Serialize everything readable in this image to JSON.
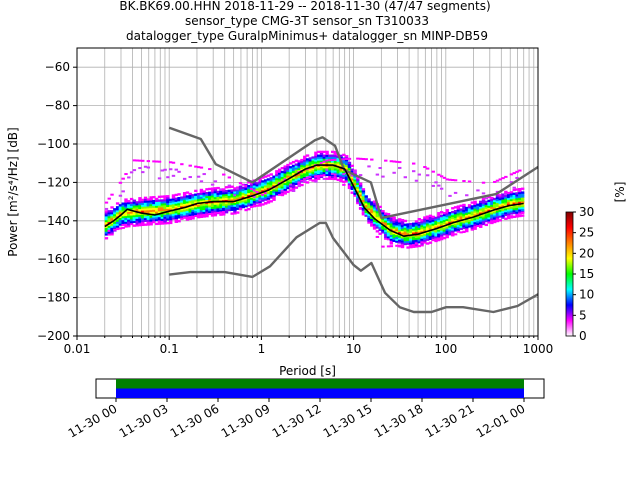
{
  "title": {
    "line1": "BK.BK69.00.HHN   2018-11-29 -- 2018-11-30  (47/47 segments)",
    "line2": "sensor_type CMG-3T sensor_sn T310033",
    "line3": "datalogger_type GuralpMinimus+ datalogger_sn MINP-DB59"
  },
  "chart_data": [
    {
      "type": "heatmap",
      "xlabel": "Period [s]",
      "ylabel": "Power [m²/s⁴/Hz] [dB]",
      "xscale": "log",
      "xlim": [
        0.01,
        1000
      ],
      "ylim": [
        -200,
        -50
      ],
      "xticks": [
        {
          "value": 0.01,
          "label": "0.01"
        },
        {
          "value": 0.1,
          "label": "0.1"
        },
        {
          "value": 1,
          "label": "1"
        },
        {
          "value": 10,
          "label": "10"
        },
        {
          "value": 100,
          "label": "100"
        },
        {
          "value": 1000,
          "label": "1000"
        }
      ],
      "yticks": [
        -60,
        -80,
        -100,
        -120,
        -140,
        -160,
        -180,
        -200
      ],
      "grid": true,
      "colorbar": {
        "label": "[%]",
        "ticks": [
          0,
          5,
          10,
          15,
          20,
          25,
          30
        ],
        "range": [
          0,
          30
        ],
        "colors": [
          "#ffffff",
          "#ff00ff",
          "#0000ff",
          "#00ffff",
          "#00ff00",
          "#ffff00",
          "#ff8000",
          "#ff0000",
          "#800000"
        ]
      },
      "series": [
        {
          "kind": "noise-model-high",
          "color": "#666666",
          "points": [
            [
              0.1,
              -91.5
            ],
            [
              0.22,
              -97.4
            ],
            [
              0.32,
              -110.5
            ],
            [
              0.8,
              -120
            ],
            [
              3.8,
              -98
            ],
            [
              4.6,
              -96.5
            ],
            [
              6.3,
              -101
            ],
            [
              7.9,
              -113.5
            ],
            [
              15.4,
              -120
            ],
            [
              20,
              -138.5
            ],
            [
              354.8,
              -126
            ],
            [
              1000,
              -112
            ]
          ]
        },
        {
          "kind": "noise-model-low",
          "color": "#666666",
          "points": [
            [
              0.1,
              -168
            ],
            [
              0.17,
              -166.7
            ],
            [
              0.4,
              -166.7
            ],
            [
              0.8,
              -169.2
            ],
            [
              1.24,
              -163.7
            ],
            [
              2.4,
              -148.6
            ],
            [
              4.3,
              -141.1
            ],
            [
              5.0,
              -141.1
            ],
            [
              6.0,
              -149
            ],
            [
              10,
              -163
            ],
            [
              12,
              -166
            ],
            [
              15.6,
              -162
            ],
            [
              21.9,
              -177.5
            ],
            [
              31.6,
              -185
            ],
            [
              45,
              -187.5
            ],
            [
              70,
              -187.5
            ],
            [
              101,
              -185
            ],
            [
              154,
              -185
            ],
            [
              328,
              -187.5
            ],
            [
              600,
              -184.4
            ],
            [
              1000,
              -178.3
            ]
          ]
        },
        {
          "kind": "mode",
          "color": "#000000",
          "points": [
            [
              0.02,
              -143
            ],
            [
              0.025,
              -140
            ],
            [
              0.03,
              -137
            ],
            [
              0.035,
              -134
            ],
            [
              0.05,
              -136
            ],
            [
              0.07,
              -137
            ],
            [
              0.1,
              -135
            ],
            [
              0.15,
              -133
            ],
            [
              0.2,
              -131
            ],
            [
              0.3,
              -130
            ],
            [
              0.5,
              -130
            ],
            [
              0.8,
              -127
            ],
            [
              1.2,
              -124
            ],
            [
              2,
              -118
            ],
            [
              3,
              -113
            ],
            [
              4,
              -111
            ],
            [
              6,
              -111
            ],
            [
              8,
              -113
            ],
            [
              10,
              -122
            ],
            [
              13,
              -133
            ],
            [
              17,
              -139
            ],
            [
              25,
              -145
            ],
            [
              35,
              -148
            ],
            [
              50,
              -147
            ],
            [
              80,
              -144
            ],
            [
              120,
              -141
            ],
            [
              200,
              -138
            ],
            [
              350,
              -134
            ],
            [
              500,
              -132
            ],
            [
              700,
              -131
            ]
          ]
        }
      ],
      "density_band": {
        "center": [
          [
            0.02,
            -142
          ],
          [
            0.03,
            -136
          ],
          [
            0.05,
            -135
          ],
          [
            0.1,
            -134
          ],
          [
            0.2,
            -131
          ],
          [
            0.3,
            -130
          ],
          [
            0.5,
            -129
          ],
          [
            0.8,
            -126
          ],
          [
            1.2,
            -123
          ],
          [
            2,
            -117
          ],
          [
            3,
            -113
          ],
          [
            4,
            -111
          ],
          [
            6,
            -111
          ],
          [
            8,
            -113
          ],
          [
            10,
            -121
          ],
          [
            13,
            -132
          ],
          [
            17,
            -138
          ],
          [
            25,
            -145
          ],
          [
            35,
            -147
          ],
          [
            50,
            -146
          ],
          [
            80,
            -143
          ],
          [
            120,
            -140
          ],
          [
            200,
            -137
          ],
          [
            350,
            -133
          ],
          [
            500,
            -131
          ],
          [
            700,
            -130
          ]
        ],
        "sparse_upper": [
          [
            0.02,
            -130
          ],
          [
            0.03,
            -118
          ],
          [
            0.04,
            -108
          ],
          [
            0.1,
            -109
          ],
          [
            0.3,
            -113
          ],
          [
            1,
            -126
          ],
          [
            2,
            -116
          ],
          [
            5,
            -108
          ],
          [
            10,
            -107
          ],
          [
            20,
            -108
          ],
          [
            50,
            -110
          ],
          [
            100,
            -118
          ],
          [
            300,
            -120
          ],
          [
            700,
            -112
          ]
        ],
        "sparse_lower": [
          [
            0.02,
            -145
          ],
          [
            0.05,
            -141
          ],
          [
            0.1,
            -139
          ],
          [
            0.5,
            -134
          ],
          [
            1,
            -131
          ],
          [
            3,
            -117
          ],
          [
            6,
            -115
          ],
          [
            10,
            -128
          ],
          [
            20,
            -153
          ],
          [
            40,
            -152
          ],
          [
            100,
            -148
          ],
          [
            300,
            -140
          ],
          [
            700,
            -135
          ]
        ]
      }
    },
    {
      "type": "timeline",
      "xticks": [
        "11-30 00",
        "11-30 03",
        "11-30 06",
        "11-30 09",
        "11-30 12",
        "11-30 15",
        "11-30 18",
        "11-30 21",
        "12-01 00"
      ],
      "data_fraction_start": 0.0,
      "data_fraction_end": 1.0,
      "colors": {
        "upper": "#008000",
        "lower": "#0000ff"
      }
    }
  ]
}
